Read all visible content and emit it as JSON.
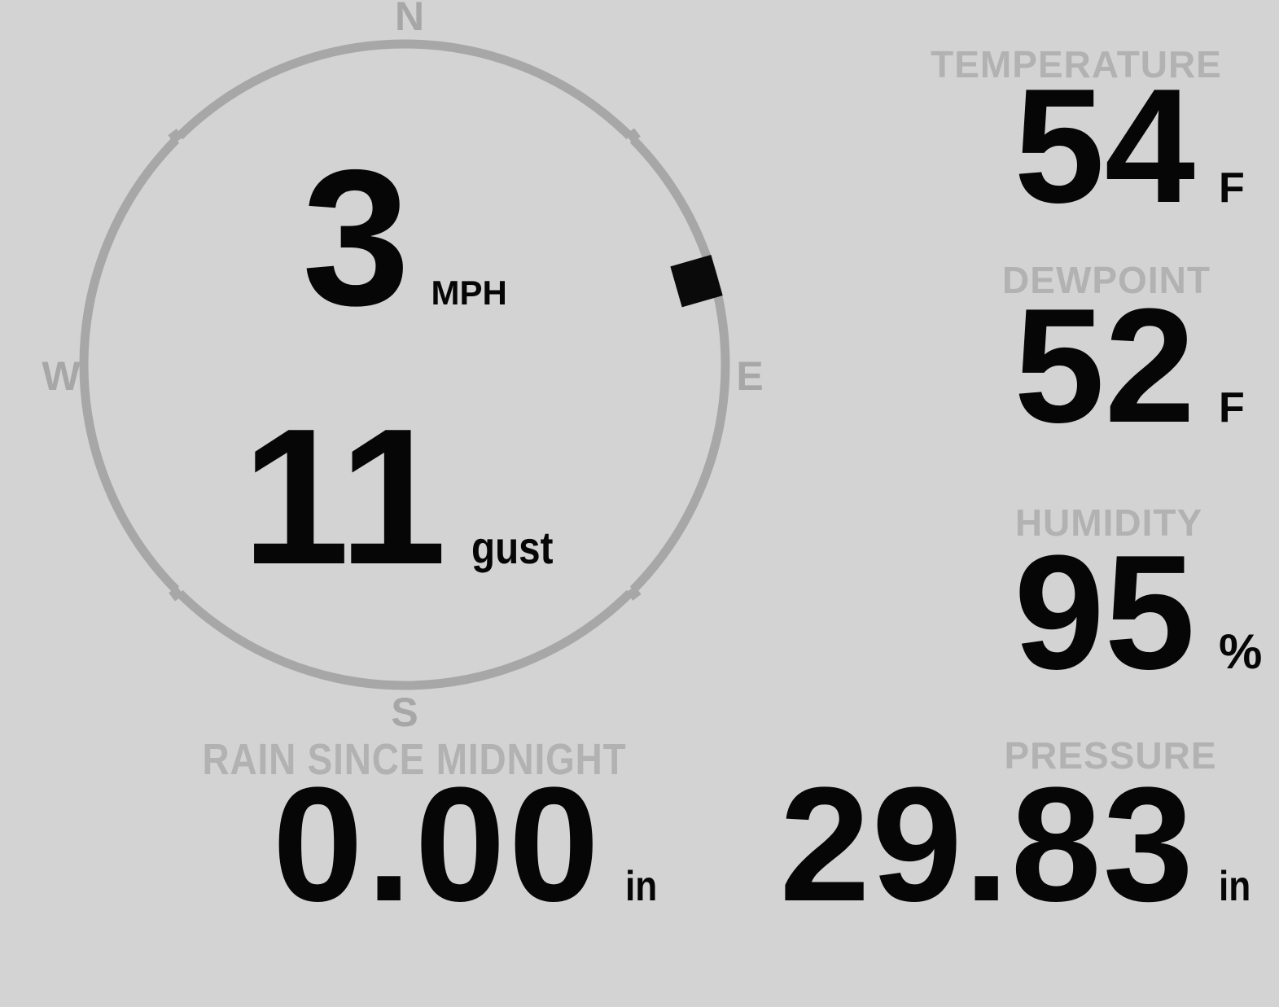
{
  "colors": {
    "background": "#d3d3d3",
    "compass_ring": "#a7a7a7",
    "muted_label": "#b2b2b2",
    "value_text": "#060606",
    "wind_marker": "#0a0a0a"
  },
  "compass": {
    "cardinals": {
      "north": "N",
      "east": "E",
      "south": "S",
      "west": "W"
    },
    "wind_speed": {
      "value": "3",
      "unit": "MPH"
    },
    "wind_gust": {
      "value": "11",
      "unit": "gust"
    },
    "wind_direction_deg": 74
  },
  "metrics": {
    "temperature": {
      "label": "TEMPERATURE",
      "value": "54",
      "unit": "F"
    },
    "dewpoint": {
      "label": "DEWPOINT",
      "value": "52",
      "unit": "F"
    },
    "humidity": {
      "label": "HUMIDITY",
      "value": "95",
      "unit": "%"
    },
    "pressure": {
      "label": "PRESSURE",
      "value": "29.83",
      "unit": "in"
    },
    "rain_since_midnight": {
      "label": "RAIN SINCE MIDNIGHT",
      "value": "0.00",
      "unit": "in"
    }
  }
}
